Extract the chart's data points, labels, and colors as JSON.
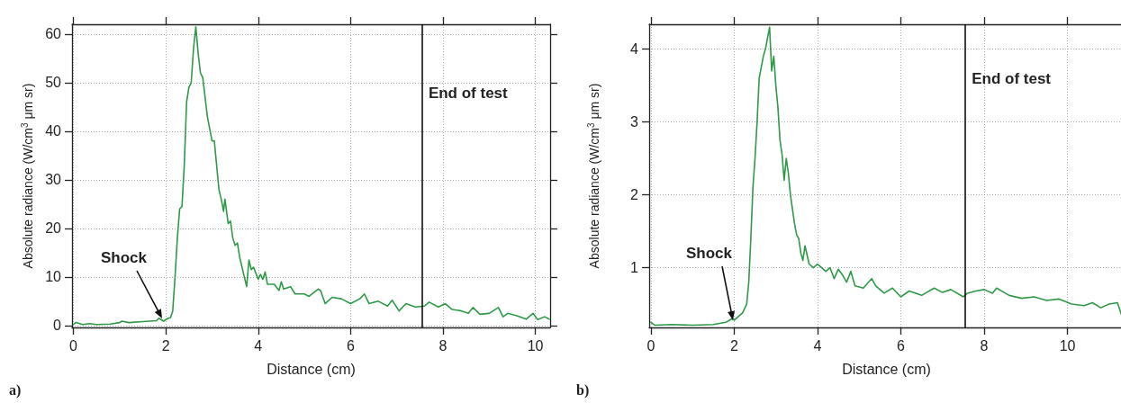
{
  "chart_data": [
    {
      "type": "line",
      "xlabel": "Distance (cm)",
      "ylabel": "Absolute radiance (W/cm$^{3}$ μm sr)",
      "xlim": [
        -0.03,
        10.32
      ],
      "ylim": [
        -0.4,
        62
      ],
      "xticks": [
        0,
        2,
        4,
        6,
        8,
        10
      ],
      "yticks": [
        0,
        10,
        20,
        30,
        40,
        50,
        60
      ],
      "grid": true,
      "marker": "none",
      "line_style": "solid",
      "series": [
        {
          "color": "#2e9a47",
          "x": [
            0,
            0.05,
            0.2,
            0.35,
            0.5,
            0.8,
            1.0,
            1.05,
            1.2,
            1.5,
            1.8,
            1.85,
            1.95,
            2.05,
            2.1,
            2.15,
            2.2,
            2.25,
            2.3,
            2.35,
            2.4,
            2.45,
            2.5,
            2.55,
            2.6,
            2.65,
            2.7,
            2.75,
            2.8,
            2.9,
            3.0,
            3.05,
            3.1,
            3.15,
            3.2,
            3.25,
            3.28,
            3.35,
            3.4,
            3.45,
            3.5,
            3.55,
            3.6,
            3.7,
            3.75,
            3.8,
            3.85,
            3.9,
            4.0,
            4.05,
            4.1,
            4.15,
            4.2,
            4.35,
            4.45,
            4.5,
            4.55,
            4.7,
            4.8,
            5.0,
            5.1,
            5.3,
            5.35,
            5.45,
            5.6,
            5.8,
            6.0,
            6.2,
            6.3,
            6.4,
            6.6,
            6.8,
            6.9,
            7.05,
            7.2,
            7.4,
            7.6,
            7.7,
            7.9,
            8.05,
            8.2,
            8.4,
            8.55,
            8.65,
            8.8,
            9.0,
            9.2,
            9.3,
            9.4,
            9.6,
            9.8,
            9.95,
            10.05,
            10.2,
            10.3
          ],
          "values": [
            0.2,
            0.6,
            0.2,
            0.4,
            0.2,
            0.3,
            0.6,
            0.9,
            0.6,
            0.8,
            1.0,
            1.5,
            0.9,
            1.5,
            1.6,
            3,
            10,
            18,
            24,
            24.5,
            33,
            46,
            49,
            50,
            57,
            61.5,
            56,
            52,
            51,
            43,
            38,
            38,
            33,
            28,
            26,
            23.5,
            26,
            21,
            21.5,
            18,
            16.5,
            17,
            14,
            10,
            8,
            13.5,
            11.5,
            12,
            9.5,
            10.5,
            9.5,
            11,
            8.5,
            8.5,
            7.2,
            9,
            7.5,
            8,
            6.5,
            6.5,
            6,
            7.5,
            7.2,
            4.5,
            5.8,
            5.5,
            4.5,
            5.5,
            6.5,
            4.5,
            5,
            4,
            5.2,
            3,
            4.5,
            3.8,
            4,
            4.8,
            3.8,
            4.5,
            3.3,
            3,
            2.5,
            3.7,
            2.3,
            2.5,
            3.7,
            1.8,
            2.5,
            2,
            1.3,
            2.5,
            1.2,
            1.8,
            1.3
          ]
        }
      ],
      "ref_lines": [
        {
          "axis": "x",
          "value": 7.55,
          "label": "End of test",
          "color": "#000000"
        }
      ],
      "annotations": [
        "Shock",
        "a)"
      ]
    },
    {
      "type": "line",
      "xlabel": "Distance (cm)",
      "ylabel": "Absolute radiance (W/cm$^{3}$ μm sr)",
      "xlim": [
        -0.04,
        11.35
      ],
      "ylim": [
        0.18,
        4.34
      ],
      "xticks": [
        0,
        2,
        4,
        6,
        8,
        10
      ],
      "yticks": [
        1,
        2,
        3,
        4
      ],
      "grid": true,
      "marker": "none",
      "line_style": "solid",
      "series": [
        {
          "color": "#2e9a47",
          "x": [
            0,
            0.1,
            0.5,
            1.0,
            1.5,
            1.8,
            1.95,
            2.0,
            2.1,
            2.2,
            2.3,
            2.35,
            2.4,
            2.45,
            2.5,
            2.55,
            2.6,
            2.65,
            2.7,
            2.75,
            2.8,
            2.85,
            2.9,
            2.95,
            3.0,
            3.05,
            3.1,
            3.15,
            3.2,
            3.25,
            3.3,
            3.35,
            3.4,
            3.45,
            3.5,
            3.55,
            3.6,
            3.65,
            3.7,
            3.8,
            3.9,
            4.0,
            4.1,
            4.2,
            4.3,
            4.4,
            4.5,
            4.6,
            4.7,
            4.8,
            4.9,
            5.1,
            5.3,
            5.4,
            5.6,
            5.8,
            6.0,
            6.2,
            6.5,
            6.8,
            7.0,
            7.2,
            7.5,
            7.6,
            7.8,
            8.0,
            8.2,
            8.3,
            8.6,
            8.9,
            9.2,
            9.5,
            9.8,
            10.1,
            10.4,
            10.6,
            10.8,
            11.0,
            11.2,
            11.3
          ],
          "values": [
            0.25,
            0.21,
            0.22,
            0.21,
            0.22,
            0.25,
            0.3,
            0.28,
            0.33,
            0.38,
            0.5,
            0.8,
            1.4,
            2.1,
            2.5,
            3.0,
            3.6,
            3.75,
            3.9,
            4.0,
            4.15,
            4.3,
            3.7,
            3.9,
            3.5,
            3.2,
            2.75,
            2.55,
            2.2,
            2.5,
            2.3,
            2.0,
            1.8,
            1.6,
            1.45,
            1.4,
            1.2,
            1.1,
            1.3,
            1.05,
            1.0,
            1.05,
            1.0,
            0.95,
            1.0,
            0.85,
            0.98,
            0.9,
            0.8,
            0.95,
            0.75,
            0.72,
            0.85,
            0.75,
            0.65,
            0.72,
            0.6,
            0.68,
            0.62,
            0.72,
            0.66,
            0.7,
            0.6,
            0.65,
            0.68,
            0.7,
            0.65,
            0.72,
            0.62,
            0.58,
            0.6,
            0.55,
            0.57,
            0.5,
            0.48,
            0.52,
            0.45,
            0.5,
            0.52,
            0.35
          ]
        }
      ],
      "ref_lines": [
        {
          "axis": "x",
          "value": 7.55,
          "label": "End of test",
          "color": "#000000"
        }
      ],
      "annotations": [
        "Shock",
        "b)"
      ]
    }
  ]
}
